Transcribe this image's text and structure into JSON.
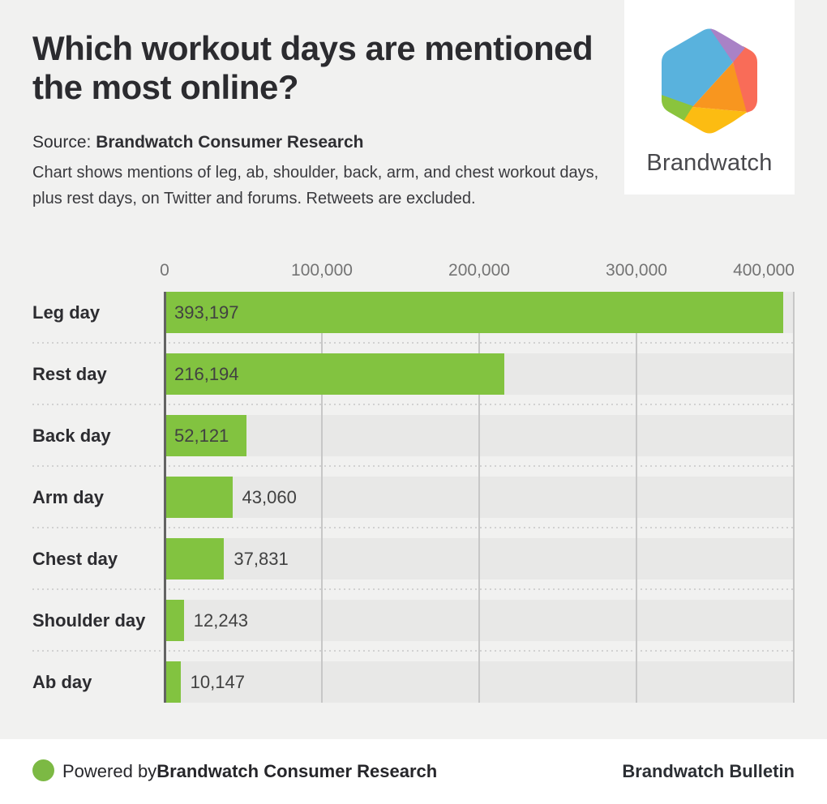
{
  "page": {
    "background": "#f1f1f0"
  },
  "header": {
    "title": "Which workout days are mentioned the most online?",
    "source_prefix": "Source: ",
    "source_name": "Brandwatch Consumer Research",
    "description": "Chart shows mentions of leg, ab, shoulder, back, arm, and chest workout days, plus rest days, on Twitter and forums. Retweets are excluded."
  },
  "logo": {
    "brand_name": "Brandwatch",
    "hexagon_colors": {
      "blue": "#59b2dd",
      "purple": "#a982c6",
      "coral": "#f96c58",
      "orange": "#f8961f",
      "yellow": "#fcbc12",
      "green": "#8ac43d"
    }
  },
  "chart_data": {
    "type": "bar",
    "orientation": "horizontal",
    "title": "Which workout days are mentioned the most online?",
    "categories": [
      "Leg day",
      "Rest day",
      "Back day",
      "Arm day",
      "Chest day",
      "Shoulder day",
      "Ab day"
    ],
    "values": [
      393197,
      216194,
      52121,
      43060,
      37831,
      12243,
      10147
    ],
    "value_labels": [
      "393,197",
      "216,194",
      "52,121",
      "43,060",
      "37,831",
      "12,243",
      "10,147"
    ],
    "axis": {
      "position": "top",
      "min": 0,
      "max": 400000,
      "ticks": [
        0,
        100000,
        200000,
        300000,
        400000
      ],
      "tick_labels": [
        "0",
        "100,000",
        "200,000",
        "300,000",
        "400,000"
      ]
    },
    "grid": true,
    "legend": false,
    "bar_color": "#82c340",
    "track_color": "#e8e8e7",
    "gridline_color": "#c7c7c7",
    "axis_line_color": "#636363"
  },
  "footer": {
    "dot_color": "#7cb944",
    "powered_prefix": "Powered by ",
    "powered_name": "Brandwatch Consumer Research",
    "right_text": "Brandwatch Bulletin"
  }
}
